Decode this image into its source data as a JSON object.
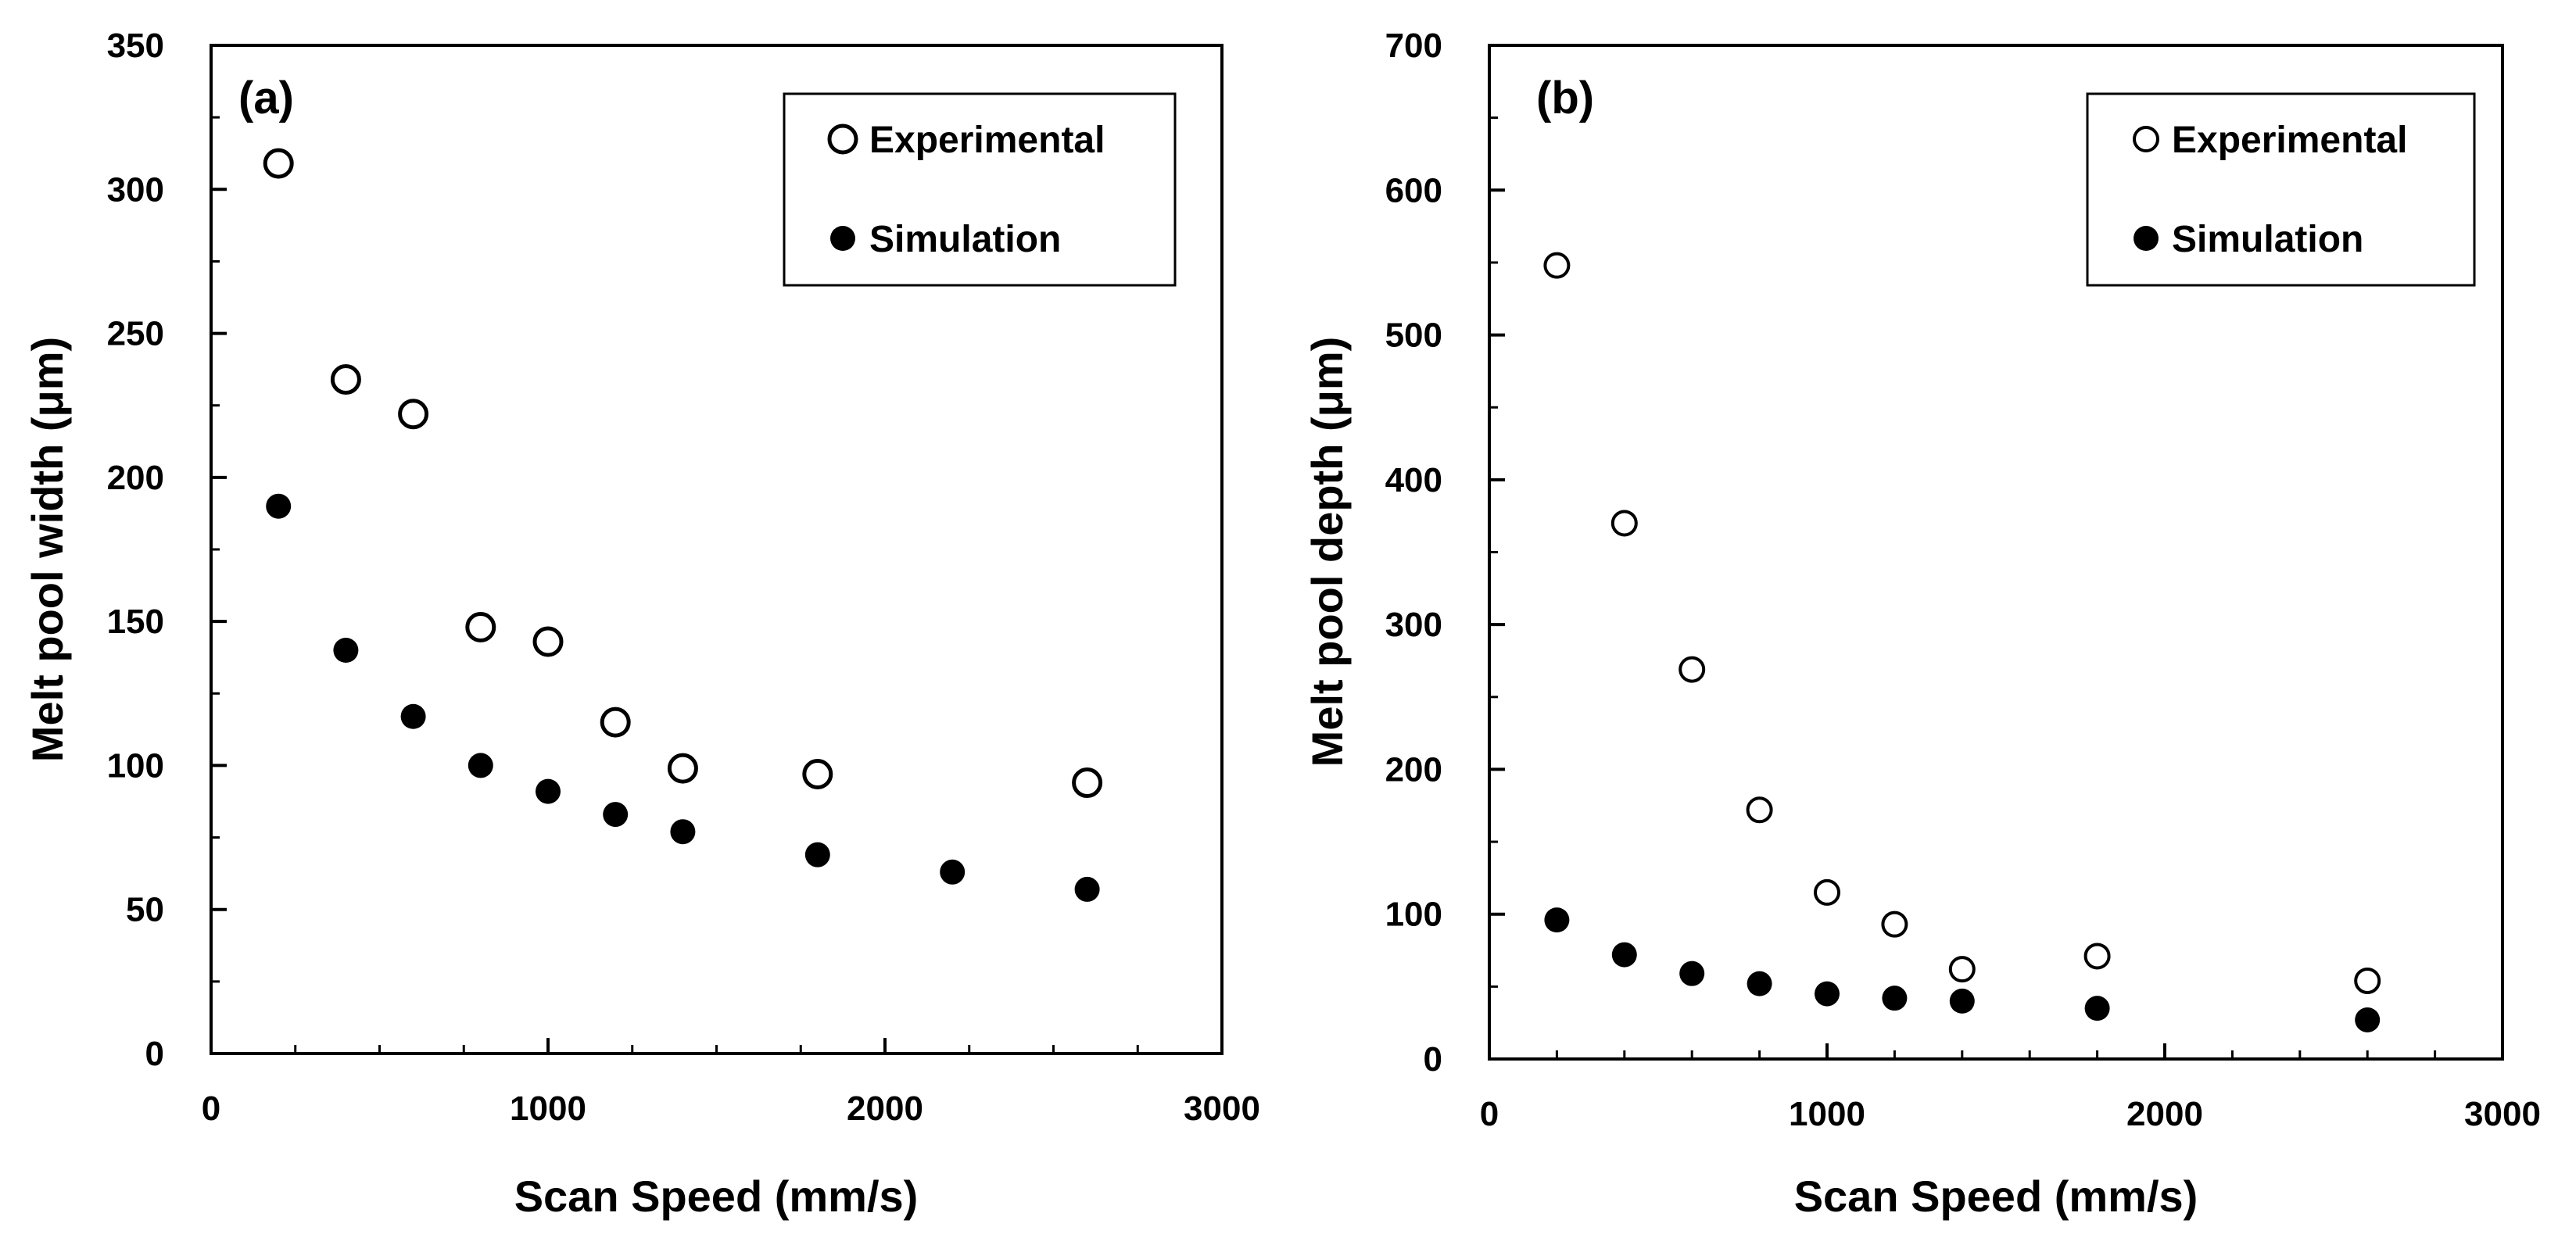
{
  "chart_data": [
    {
      "type": "scatter",
      "panel_label": "(a)",
      "xlabel": "Scan Speed (mm/s)",
      "ylabel": "Melt pool width (μm)",
      "xlim": [
        0,
        3000
      ],
      "ylim": [
        0,
        350
      ],
      "xticks": [
        0,
        1000,
        2000,
        3000
      ],
      "yticks": [
        0,
        50,
        100,
        150,
        200,
        250,
        300,
        350
      ],
      "grid": false,
      "legend_position": "top-right",
      "series": [
        {
          "name": "Experimental",
          "marker": "open-circle",
          "x": [
            200,
            400,
            600,
            800,
            1000,
            1200,
            1400,
            1800,
            2600
          ],
          "y": [
            309,
            234,
            222,
            148,
            143,
            115,
            99,
            97,
            94
          ]
        },
        {
          "name": "Simulation",
          "marker": "filled-circle",
          "x": [
            200,
            400,
            600,
            800,
            1000,
            1200,
            1400,
            1800,
            2200,
            2600
          ],
          "y": [
            190,
            140,
            117,
            100,
            91,
            83,
            77,
            69,
            63,
            57
          ]
        }
      ]
    },
    {
      "type": "scatter",
      "panel_label": "(b)",
      "xlabel": "Scan Speed (mm/s)",
      "ylabel": "Melt pool depth (μm)",
      "xlim": [
        0,
        3000
      ],
      "ylim": [
        0,
        700
      ],
      "xticks": [
        0,
        1000,
        2000,
        3000
      ],
      "yticks": [
        0,
        100,
        200,
        300,
        400,
        500,
        600,
        700
      ],
      "grid": false,
      "legend_position": "top-right",
      "series": [
        {
          "name": "Experimental",
          "marker": "open-circle",
          "x": [
            200,
            400,
            600,
            800,
            1000,
            1200,
            1400,
            1800,
            2600
          ],
          "y": [
            548,
            370,
            269,
            172,
            115,
            93,
            62,
            71,
            54
          ]
        },
        {
          "name": "Simulation",
          "marker": "filled-circle",
          "x": [
            200,
            400,
            600,
            800,
            1000,
            1200,
            1400,
            1800,
            2600
          ],
          "y": [
            96,
            72,
            59,
            52,
            45,
            42,
            40,
            35,
            27
          ]
        }
      ]
    }
  ]
}
